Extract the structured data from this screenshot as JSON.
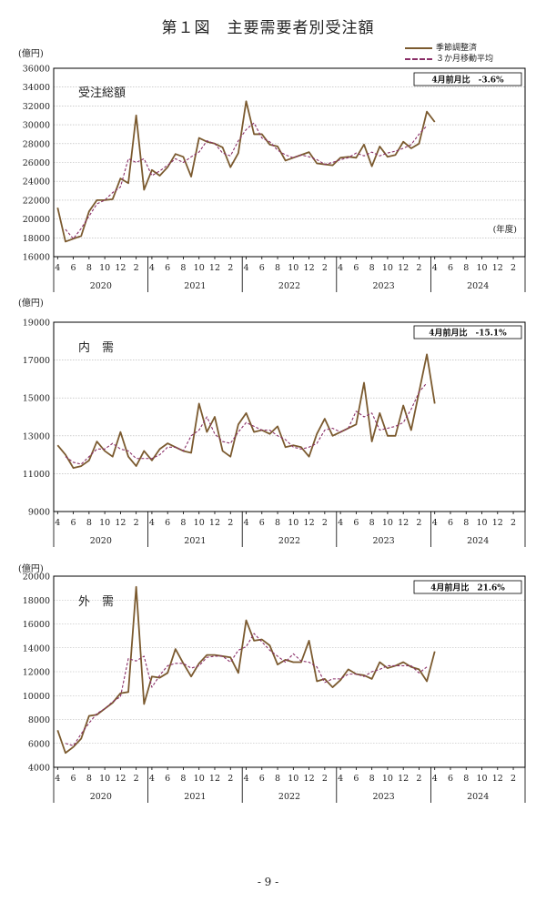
{
  "page": {
    "title": "第１図　主要需要者別受注額",
    "page_number": "- 9 -"
  },
  "legend": {
    "seasonal": "季節調整済",
    "moving_avg": "３か月移動平均"
  },
  "colors": {
    "seasonal": "#7b5a2f",
    "moving_avg": "#8a2f68",
    "axis": "#000000",
    "grid": "#b0b0b0"
  },
  "x_axis": {
    "months": [
      "4",
      "6",
      "8",
      "10",
      "12",
      "2",
      "4",
      "6",
      "8",
      "10",
      "12",
      "2",
      "4",
      "6",
      "8",
      "10",
      "12",
      "2",
      "4",
      "6",
      "8",
      "10",
      "12",
      "2",
      "4",
      "6",
      "8",
      "10",
      "12",
      "2"
    ],
    "years": [
      "2020",
      "2021",
      "2022",
      "2023",
      "2024"
    ]
  },
  "chart_data": [
    {
      "type": "line",
      "unit": "(億円)",
      "panel_label": "受注総額",
      "note": "(年度)",
      "box_text": "4月前月比　-3.6%",
      "ylim": [
        16000,
        36000
      ],
      "ystep": 2000,
      "grid": true,
      "x": [
        "2020-04",
        "2020-05",
        "2020-06",
        "2020-07",
        "2020-08",
        "2020-09",
        "2020-10",
        "2020-11",
        "2020-12",
        "2021-01",
        "2021-02",
        "2021-03",
        "2021-04",
        "2021-05",
        "2021-06",
        "2021-07",
        "2021-08",
        "2021-09",
        "2021-10",
        "2021-11",
        "2021-12",
        "2022-01",
        "2022-02",
        "2022-03",
        "2022-04",
        "2022-05",
        "2022-06",
        "2022-07",
        "2022-08",
        "2022-09",
        "2022-10",
        "2022-11",
        "2022-12",
        "2023-01",
        "2023-02",
        "2023-03",
        "2023-04",
        "2023-05",
        "2023-06",
        "2023-07",
        "2023-08",
        "2023-09",
        "2023-10",
        "2023-11",
        "2023-12",
        "2024-01",
        "2024-02",
        "2024-03",
        "2024-04"
      ],
      "series": [
        {
          "name": "季節調整済",
          "style": "solid",
          "values": [
            21200,
            17600,
            17900,
            18200,
            20800,
            22000,
            22000,
            22100,
            24300,
            23800,
            31000,
            23100,
            25200,
            24600,
            25500,
            26900,
            26600,
            24500,
            28600,
            28200,
            28000,
            27600,
            25500,
            27000,
            32500,
            29000,
            29000,
            27900,
            27700,
            26200,
            26500,
            26800,
            27100,
            25900,
            25800,
            25700,
            26500,
            26600,
            26500,
            27900,
            25600,
            27700,
            26600,
            26800,
            28200,
            27500,
            28000,
            31400,
            30300
          ]
        },
        {
          "name": "３か月移動平均",
          "style": "dashed",
          "values": [
            null,
            18900,
            17900,
            19000,
            20300,
            21600,
            22000,
            22800,
            23400,
            26400,
            26000,
            26400,
            24600,
            25100,
            25700,
            26400,
            26000,
            26600,
            27100,
            28300,
            28000,
            27000,
            26700,
            28300,
            29500,
            30200,
            28600,
            28200,
            27300,
            26800,
            26500,
            26800,
            26600,
            26300,
            25800,
            26000,
            26300,
            26500,
            27000,
            26700,
            27100,
            26700,
            27000,
            27200,
            27500,
            27900,
            29000,
            29900,
            null
          ]
        }
      ]
    },
    {
      "type": "line",
      "unit": "(億円)",
      "panel_label": "内　需",
      "box_text": "4月前月比　-15.1%",
      "ylim": [
        9000,
        19000
      ],
      "ystep": 2000,
      "grid": true,
      "x": [
        "2020-04",
        "2020-05",
        "2020-06",
        "2020-07",
        "2020-08",
        "2020-09",
        "2020-10",
        "2020-11",
        "2020-12",
        "2021-01",
        "2021-02",
        "2021-03",
        "2021-04",
        "2021-05",
        "2021-06",
        "2021-07",
        "2021-08",
        "2021-09",
        "2021-10",
        "2021-11",
        "2021-12",
        "2022-01",
        "2022-02",
        "2022-03",
        "2022-04",
        "2022-05",
        "2022-06",
        "2022-07",
        "2022-08",
        "2022-09",
        "2022-10",
        "2022-11",
        "2022-12",
        "2023-01",
        "2023-02",
        "2023-03",
        "2023-04",
        "2023-05",
        "2023-06",
        "2023-07",
        "2023-08",
        "2023-09",
        "2023-10",
        "2023-11",
        "2023-12",
        "2024-01",
        "2024-02",
        "2024-03",
        "2024-04"
      ],
      "series": [
        {
          "name": "季節調整済",
          "style": "solid",
          "values": [
            12500,
            12000,
            11300,
            11400,
            11700,
            12700,
            12200,
            11900,
            13200,
            11900,
            11400,
            12200,
            11700,
            12300,
            12600,
            12400,
            12200,
            12100,
            14700,
            13200,
            14000,
            12200,
            11900,
            13600,
            14200,
            13200,
            13300,
            13100,
            13500,
            12400,
            12500,
            12400,
            11900,
            13100,
            13900,
            13000,
            13200,
            13400,
            13600,
            15800,
            12700,
            14200,
            13000,
            13000,
            14600,
            13300,
            15300,
            17300,
            14700
          ]
        },
        {
          "name": "３か月移動平均",
          "style": "dashed",
          "values": [
            null,
            11900,
            11600,
            11500,
            11900,
            12300,
            12300,
            12600,
            12300,
            12200,
            11800,
            11800,
            11800,
            12000,
            12400,
            12400,
            12200,
            13000,
            13300,
            14000,
            13100,
            12700,
            12600,
            13200,
            13700,
            13500,
            13300,
            13300,
            13000,
            12800,
            12400,
            12300,
            12400,
            12600,
            13300,
            13400,
            13200,
            13400,
            14300,
            14000,
            14200,
            13300,
            13400,
            13500,
            13700,
            14400,
            15300,
            15800,
            null
          ]
        }
      ]
    },
    {
      "type": "line",
      "unit": "(億円)",
      "panel_label": "外　需",
      "box_text": "4月前月比　21.6%",
      "ylim": [
        4000,
        20000
      ],
      "ystep": 2000,
      "grid": true,
      "x": [
        "2020-04",
        "2020-05",
        "2020-06",
        "2020-07",
        "2020-08",
        "2020-09",
        "2020-10",
        "2020-11",
        "2020-12",
        "2021-01",
        "2021-02",
        "2021-03",
        "2021-04",
        "2021-05",
        "2021-06",
        "2021-07",
        "2021-08",
        "2021-09",
        "2021-10",
        "2021-11",
        "2021-12",
        "2022-01",
        "2022-02",
        "2022-03",
        "2022-04",
        "2022-05",
        "2022-06",
        "2022-07",
        "2022-08",
        "2022-09",
        "2022-10",
        "2022-11",
        "2022-12",
        "2023-01",
        "2023-02",
        "2023-03",
        "2023-04",
        "2023-05",
        "2023-06",
        "2023-07",
        "2023-08",
        "2023-09",
        "2023-10",
        "2023-11",
        "2023-12",
        "2024-01",
        "2024-02",
        "2024-03",
        "2024-04"
      ],
      "series": [
        {
          "name": "季節調整済",
          "style": "solid",
          "values": [
            7100,
            5200,
            5700,
            6400,
            8300,
            8400,
            8900,
            9400,
            10200,
            10300,
            19100,
            9300,
            11600,
            11500,
            11900,
            13900,
            12700,
            11600,
            12700,
            13400,
            13400,
            13300,
            13200,
            11900,
            16300,
            14600,
            14700,
            14200,
            12600,
            13000,
            12800,
            12800,
            14600,
            11200,
            11400,
            10700,
            11300,
            12200,
            11800,
            11700,
            11400,
            12800,
            12300,
            12500,
            12800,
            12400,
            12200,
            11200,
            13700
          ]
        },
        {
          "name": "３か月移動平均",
          "style": "dashed",
          "values": [
            null,
            6000,
            5800,
            6800,
            7700,
            8500,
            8900,
            9500,
            9900,
            13100,
            12900,
            13300,
            10700,
            11700,
            12500,
            12700,
            12700,
            12300,
            12500,
            13200,
            13300,
            13300,
            12800,
            13800,
            14100,
            15200,
            14500,
            13800,
            13300,
            12800,
            13500,
            12900,
            12800,
            12400,
            11100,
            11400,
            11400,
            11800,
            11800,
            11600,
            12000,
            12200,
            12500,
            12500,
            12500,
            12500,
            11900,
            12400,
            null
          ]
        }
      ]
    }
  ]
}
